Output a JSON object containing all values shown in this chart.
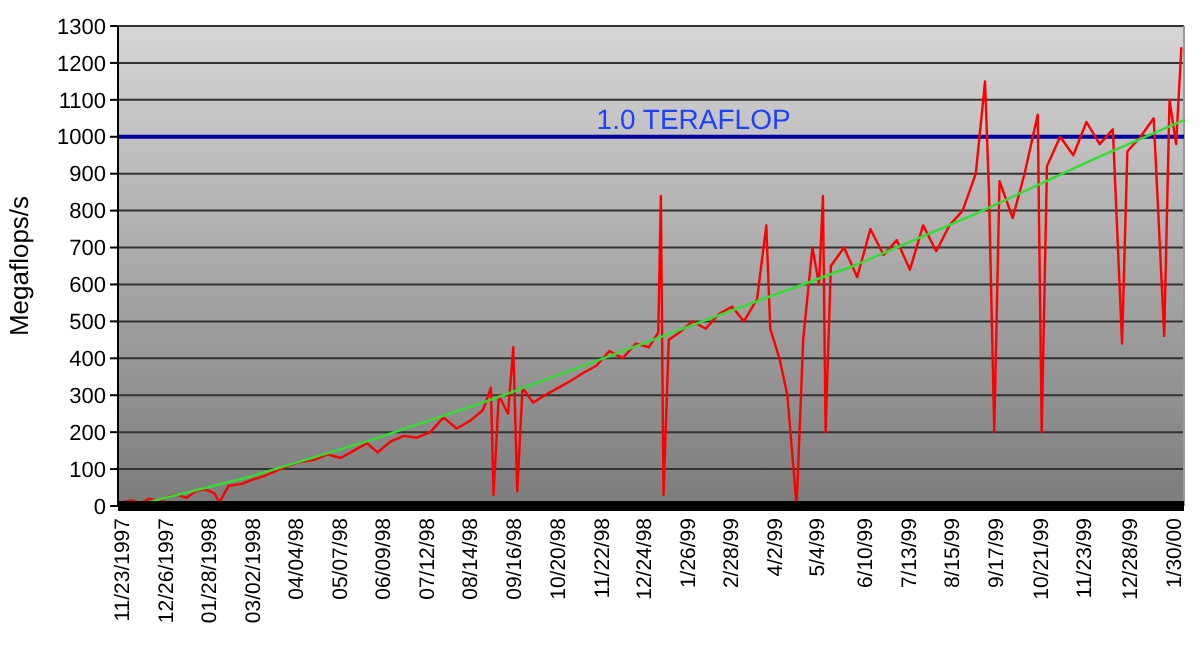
{
  "chart_data": {
    "type": "line",
    "ylabel": "Megaflops/s",
    "xlim": [
      "1997-11-20",
      "2000-02-07"
    ],
    "xticks": [
      {
        "value": "1997-11-23",
        "label": "11/23/1997"
      },
      {
        "value": "1997-12-26",
        "label": "12/26/1997"
      },
      {
        "value": "1998-01-28",
        "label": "01/28/1998"
      },
      {
        "value": "1998-03-02",
        "label": "03/02/1998"
      },
      {
        "value": "1998-04-04",
        "label": "04/04/98"
      },
      {
        "value": "1998-05-07",
        "label": "05/07/98"
      },
      {
        "value": "1998-06-09",
        "label": "06/09/98"
      },
      {
        "value": "1998-07-12",
        "label": "07/12/98"
      },
      {
        "value": "1998-08-14",
        "label": "08/14/98"
      },
      {
        "value": "1998-09-16",
        "label": "09/16/98"
      },
      {
        "value": "1998-10-20",
        "label": "10/20/98"
      },
      {
        "value": "1998-11-22",
        "label": "11/22/98"
      },
      {
        "value": "1998-12-24",
        "label": "12/24/98"
      },
      {
        "value": "1999-01-26",
        "label": "1/26/99"
      },
      {
        "value": "1999-02-28",
        "label": "2/28/99"
      },
      {
        "value": "1999-04-02",
        "label": "4/2/99"
      },
      {
        "value": "1999-05-04",
        "label": "5/4/99"
      },
      {
        "value": "1999-06-10",
        "label": "6/10/99"
      },
      {
        "value": "1999-07-13",
        "label": "7/13/99"
      },
      {
        "value": "1999-08-15",
        "label": "8/15/99"
      },
      {
        "value": "1999-09-17",
        "label": "9/17/99"
      },
      {
        "value": "1999-10-21",
        "label": "10/21/99"
      },
      {
        "value": "1999-11-23",
        "label": "11/23/99"
      },
      {
        "value": "1999-12-28",
        "label": "12/28/99"
      },
      {
        "value": "2000-01-30",
        "label": "1/30/00"
      }
    ],
    "ylim": [
      0,
      1300
    ],
    "yticks": [
      0,
      100,
      200,
      300,
      400,
      500,
      600,
      700,
      800,
      900,
      1000,
      1100,
      1200,
      1300
    ],
    "grid": "y",
    "ref_lines": [
      {
        "axis": "y",
        "value": 1000,
        "label": "1.0 TERAFLOP",
        "color": "#0000a0"
      }
    ],
    "series": [
      {
        "color": "#ff0000",
        "x": [
          "1997-11-23",
          "1997-11-30",
          "1997-12-07",
          "1997-12-14",
          "1997-12-21",
          "1997-12-28",
          "1998-01-04",
          "1998-01-11",
          "1998-01-18",
          "1998-01-25",
          "1998-02-01",
          "1998-02-05",
          "1998-02-12",
          "1998-02-22",
          "1998-03-01",
          "1998-03-10",
          "1998-03-20",
          "1998-03-30",
          "1998-04-08",
          "1998-04-18",
          "1998-04-28",
          "1998-05-08",
          "1998-05-18",
          "1998-05-28",
          "1998-06-05",
          "1998-06-15",
          "1998-06-25",
          "1998-07-05",
          "1998-07-15",
          "1998-07-25",
          "1998-08-04",
          "1998-08-14",
          "1998-08-24",
          "1998-08-30",
          "1998-09-01",
          "1998-09-05",
          "1998-09-12",
          "1998-09-16",
          "1998-09-19",
          "1998-09-23",
          "1998-10-01",
          "1998-10-10",
          "1998-10-20",
          "1998-10-30",
          "1998-11-08",
          "1998-11-18",
          "1998-11-28",
          "1998-12-08",
          "1998-12-18",
          "1998-12-28",
          "1999-01-04",
          "1999-01-06",
          "1999-01-08",
          "1999-01-12",
          "1999-01-20",
          "1999-01-30",
          "1999-02-09",
          "1999-02-19",
          "1999-03-01",
          "1999-03-10",
          "1999-03-20",
          "1999-03-27",
          "1999-03-30",
          "1999-04-06",
          "1999-04-12",
          "1999-04-19",
          "1999-04-24",
          "1999-05-01",
          "1999-05-06",
          "1999-05-09",
          "1999-05-11",
          "1999-05-15",
          "1999-05-25",
          "1999-06-04",
          "1999-06-14",
          "1999-06-24",
          "1999-07-04",
          "1999-07-14",
          "1999-07-24",
          "1999-08-03",
          "1999-08-13",
          "1999-08-23",
          "1999-09-02",
          "1999-09-09",
          "1999-09-12",
          "1999-09-16",
          "1999-09-20",
          "1999-09-30",
          "1999-10-09",
          "1999-10-19",
          "1999-10-22",
          "1999-10-26",
          "1999-11-05",
          "1999-11-15",
          "1999-11-25",
          "1999-12-05",
          "1999-12-15",
          "1999-12-22",
          "1999-12-26",
          "2000-01-05",
          "2000-01-15",
          "2000-01-23",
          "2000-01-27",
          "2000-02-01",
          "2000-02-05"
        ],
        "values": [
          10,
          15,
          8,
          20,
          12,
          25,
          30,
          22,
          40,
          45,
          35,
          10,
          55,
          60,
          70,
          80,
          95,
          110,
          120,
          125,
          140,
          130,
          150,
          170,
          145,
          175,
          190,
          185,
          200,
          240,
          210,
          230,
          260,
          320,
          30,
          300,
          250,
          430,
          40,
          320,
          280,
          300,
          320,
          340,
          360,
          380,
          420,
          400,
          440,
          430,
          470,
          840,
          30,
          450,
          470,
          500,
          480,
          520,
          540,
          500,
          560,
          760,
          480,
          400,
          300,
          0,
          450,
          700,
          600,
          840,
          200,
          650,
          700,
          620,
          750,
          680,
          720,
          640,
          760,
          690,
          760,
          800,
          900,
          1150,
          850,
          200,
          880,
          780,
          900,
          1060,
          200,
          920,
          1000,
          950,
          1040,
          980,
          1020,
          440,
          960,
          1000,
          1050,
          460,
          1100,
          980,
          1240
        ]
      },
      {
        "color": "#33dd33",
        "x": [
          "1997-12-07",
          "1998-03-01",
          "1998-06-01",
          "1998-09-01",
          "1998-12-01",
          "1999-03-01",
          "1999-06-01",
          "1999-09-01",
          "1999-12-01",
          "2000-02-07"
        ],
        "values": [
          5,
          80,
          180,
          290,
          410,
          530,
          650,
          790,
          940,
          1045
        ]
      }
    ]
  }
}
